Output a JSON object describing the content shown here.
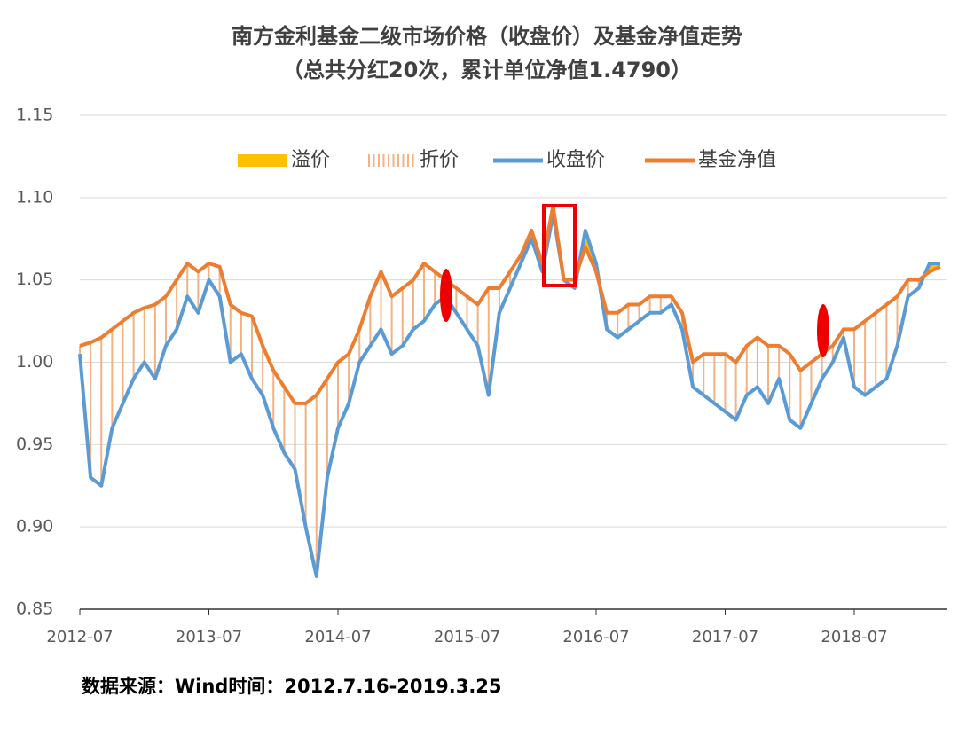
{
  "chart_data": {
    "type": "line",
    "title": "南方金利基金二级市场价格（收盘价）及基金净值走势",
    "subtitle": "（总共分红20次，累计单位净值1.4790）",
    "note": "数据来源：Wind时间：2012.7.16-2019.3.25",
    "x": [
      "2012-07",
      "2012-08",
      "2012-09",
      "2012-10",
      "2012-11",
      "2012-12",
      "2013-01",
      "2013-02",
      "2013-03",
      "2013-04",
      "2013-05",
      "2013-06",
      "2013-07",
      "2013-08",
      "2013-09",
      "2013-10",
      "2013-11",
      "2013-12",
      "2014-01",
      "2014-02",
      "2014-03",
      "2014-04",
      "2014-05",
      "2014-06",
      "2014-07",
      "2014-08",
      "2014-09",
      "2014-10",
      "2014-11",
      "2014-12",
      "2015-01",
      "2015-02",
      "2015-03",
      "2015-04",
      "2015-05",
      "2015-06",
      "2015-07",
      "2015-08",
      "2015-09",
      "2015-10",
      "2015-11",
      "2015-12",
      "2016-01",
      "2016-02",
      "2016-03",
      "2016-04",
      "2016-05",
      "2016-06",
      "2016-07",
      "2016-08",
      "2016-09",
      "2016-10",
      "2016-11",
      "2016-12",
      "2017-01",
      "2017-02",
      "2017-03",
      "2017-04",
      "2017-05",
      "2017-06",
      "2017-07",
      "2017-08",
      "2017-09",
      "2017-10",
      "2017-11",
      "2017-12",
      "2018-01",
      "2018-02",
      "2018-03",
      "2018-04",
      "2018-05",
      "2018-06",
      "2018-07",
      "2018-08",
      "2018-09",
      "2018-10",
      "2018-11",
      "2018-12",
      "2019-01",
      "2019-02",
      "2019-03"
    ],
    "series": [
      {
        "name": "收盘价",
        "color": "#5b9bd5",
        "values": [
          1.005,
          0.93,
          0.925,
          0.96,
          0.975,
          0.99,
          1.0,
          0.99,
          1.01,
          1.02,
          1.04,
          1.03,
          1.05,
          1.04,
          1.0,
          1.005,
          0.99,
          0.98,
          0.96,
          0.945,
          0.935,
          0.9,
          0.87,
          0.93,
          0.96,
          0.975,
          1.0,
          1.01,
          1.02,
          1.005,
          1.01,
          1.02,
          1.025,
          1.035,
          1.04,
          1.03,
          1.02,
          1.01,
          0.98,
          1.03,
          1.045,
          1.06,
          1.075,
          1.055,
          1.09,
          1.05,
          1.045,
          1.08,
          1.06,
          1.02,
          1.015,
          1.02,
          1.025,
          1.03,
          1.03,
          1.035,
          1.02,
          0.985,
          0.98,
          0.975,
          0.97,
          0.965,
          0.98,
          0.985,
          0.975,
          0.99,
          0.965,
          0.96,
          0.975,
          0.99,
          1.0,
          1.015,
          0.985,
          0.98,
          0.985,
          0.99,
          1.01,
          1.04,
          1.045,
          1.06,
          1.06
        ]
      },
      {
        "name": "基金净值",
        "color": "#ed7d31",
        "values": [
          1.01,
          1.012,
          1.015,
          1.02,
          1.025,
          1.03,
          1.033,
          1.035,
          1.04,
          1.05,
          1.06,
          1.055,
          1.06,
          1.058,
          1.035,
          1.03,
          1.028,
          1.01,
          0.995,
          0.985,
          0.975,
          0.975,
          0.98,
          0.99,
          1.0,
          1.005,
          1.02,
          1.04,
          1.055,
          1.04,
          1.045,
          1.05,
          1.06,
          1.055,
          1.05,
          1.045,
          1.04,
          1.035,
          1.045,
          1.045,
          1.055,
          1.065,
          1.08,
          1.06,
          1.095,
          1.05,
          1.05,
          1.07,
          1.055,
          1.03,
          1.03,
          1.035,
          1.035,
          1.04,
          1.04,
          1.04,
          1.03,
          1.0,
          1.005,
          1.005,
          1.005,
          1.0,
          1.01,
          1.015,
          1.01,
          1.01,
          1.005,
          0.995,
          1.0,
          1.005,
          1.01,
          1.02,
          1.02,
          1.025,
          1.03,
          1.035,
          1.04,
          1.05,
          1.05,
          1.055,
          1.058
        ]
      }
    ],
    "premium": {
      "name": "溢价",
      "color": "#ffc000"
    },
    "discount": {
      "name": "折价",
      "color": "#f4b183"
    },
    "ylim": [
      0.85,
      1.15
    ],
    "yticks": [
      0.85,
      {
        "value": 0.9,
        "label": "0.90"
      },
      0.95,
      {
        "value": 1,
        "label": "1.00"
      },
      1.05,
      {
        "value": 1.1,
        "label": "1.10"
      },
      1.15
    ],
    "grid": true
  }
}
